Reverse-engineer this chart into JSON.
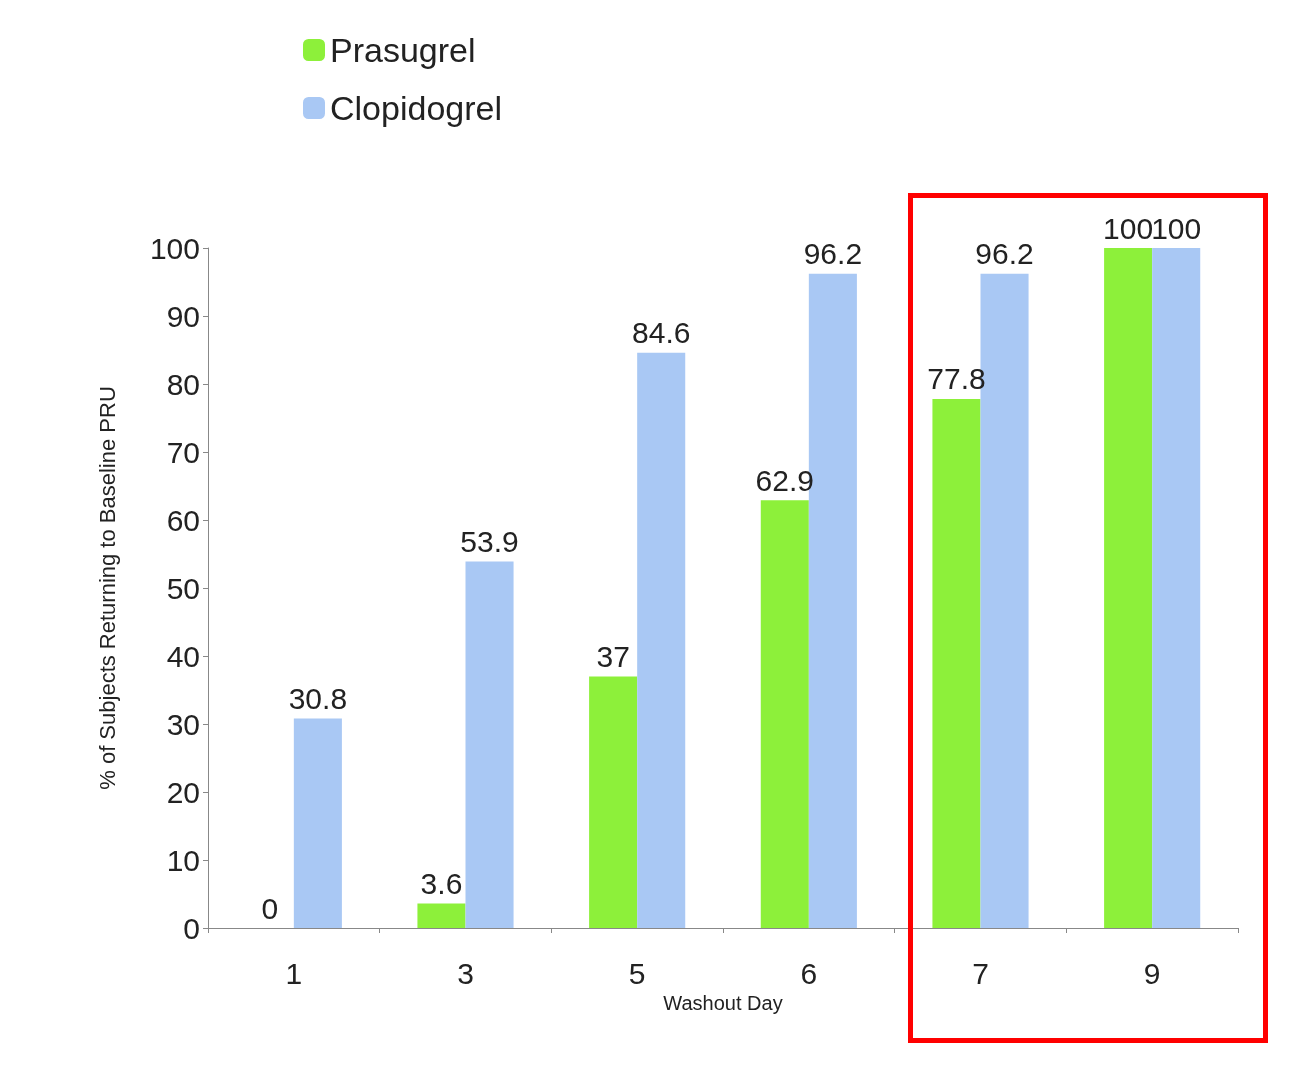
{
  "chart_data": {
    "type": "bar",
    "xlabel": "Washout Day",
    "ylabel": "% of Subjects Returning to Baseline PRU",
    "categories": [
      "1",
      "3",
      "5",
      "6",
      "7",
      "9"
    ],
    "series": [
      {
        "name": "Prasugrel",
        "color": "#8df03a",
        "values": [
          0,
          3.6,
          37,
          62.9,
          77.8,
          100
        ]
      },
      {
        "name": "Clopidogrel",
        "color": "#a9c8f4",
        "values": [
          30.8,
          53.9,
          84.6,
          96.2,
          96.2,
          100
        ]
      }
    ],
    "ylim": [
      0,
      100
    ],
    "yticks": [
      0,
      10,
      20,
      30,
      40,
      50,
      60,
      70,
      80,
      90,
      100
    ],
    "grid": false,
    "legend": "top left",
    "data_labels": true
  }
}
